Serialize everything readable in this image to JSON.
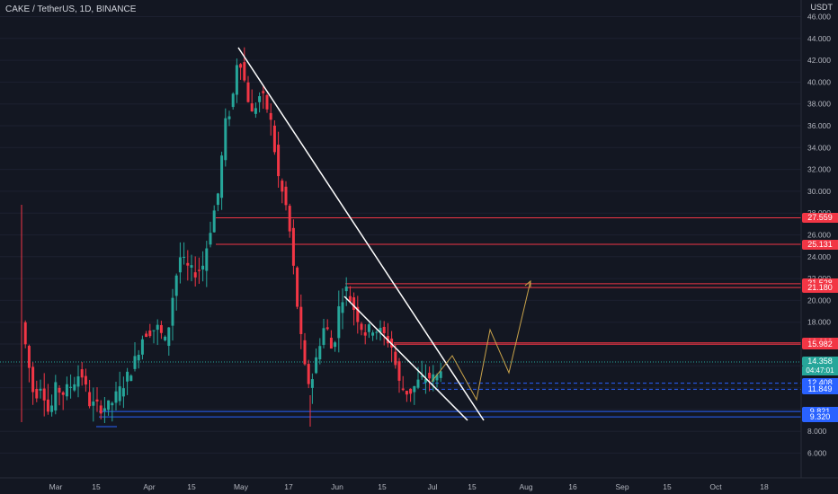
{
  "header": {
    "title": "CAKE / TetherUS, 1D, BINANCE",
    "currency": "USDT"
  },
  "chart_data": {
    "type": "candlestick",
    "y_ticks": [
      "46.000",
      "44.000",
      "42.000",
      "40.000",
      "38.000",
      "36.000",
      "34.000",
      "32.000",
      "30.000",
      "28.000",
      "26.000",
      "24.000",
      "22.000",
      "20.000",
      "18.000",
      "16.000",
      "14.000",
      "12.000",
      "10.000",
      "8.000",
      "6.000"
    ],
    "x_ticks": [
      "Mar",
      "15",
      "Apr",
      "15",
      "May",
      "17",
      "Jun",
      "15",
      "Jul",
      "15",
      "Aug",
      "16",
      "Sep",
      "15",
      "Oct",
      "18"
    ],
    "price_labels": [
      {
        "value": "27.559",
        "color": "#f23645"
      },
      {
        "value": "25.131",
        "color": "#f23645"
      },
      {
        "value": "21.528",
        "color": "#f23645"
      },
      {
        "value": "21.180",
        "color": "#f23645"
      },
      {
        "value": "16.098",
        "color": "#f23645"
      },
      {
        "value": "15.982",
        "color": "#f23645"
      },
      {
        "value": "14.358",
        "color": "#26a69a"
      },
      {
        "value": "12.408",
        "color": "#2962ff"
      },
      {
        "value": "11.849",
        "color": "#2962ff"
      },
      {
        "value": "9.821",
        "color": "#2962ff"
      },
      {
        "value": "9.320",
        "color": "#2962ff"
      }
    ],
    "countdown": "04:47:01",
    "current_price": 14.358,
    "resistance_levels": [
      27.559,
      25.131,
      21.528,
      21.18,
      16.098,
      15.982
    ],
    "support_levels": [
      12.408,
      11.849,
      9.821,
      9.32
    ],
    "colors": {
      "up": "#26a69a",
      "down": "#f23645",
      "support": "#2962ff",
      "resistance": "#f23645",
      "projection": "#c8a24a"
    }
  }
}
